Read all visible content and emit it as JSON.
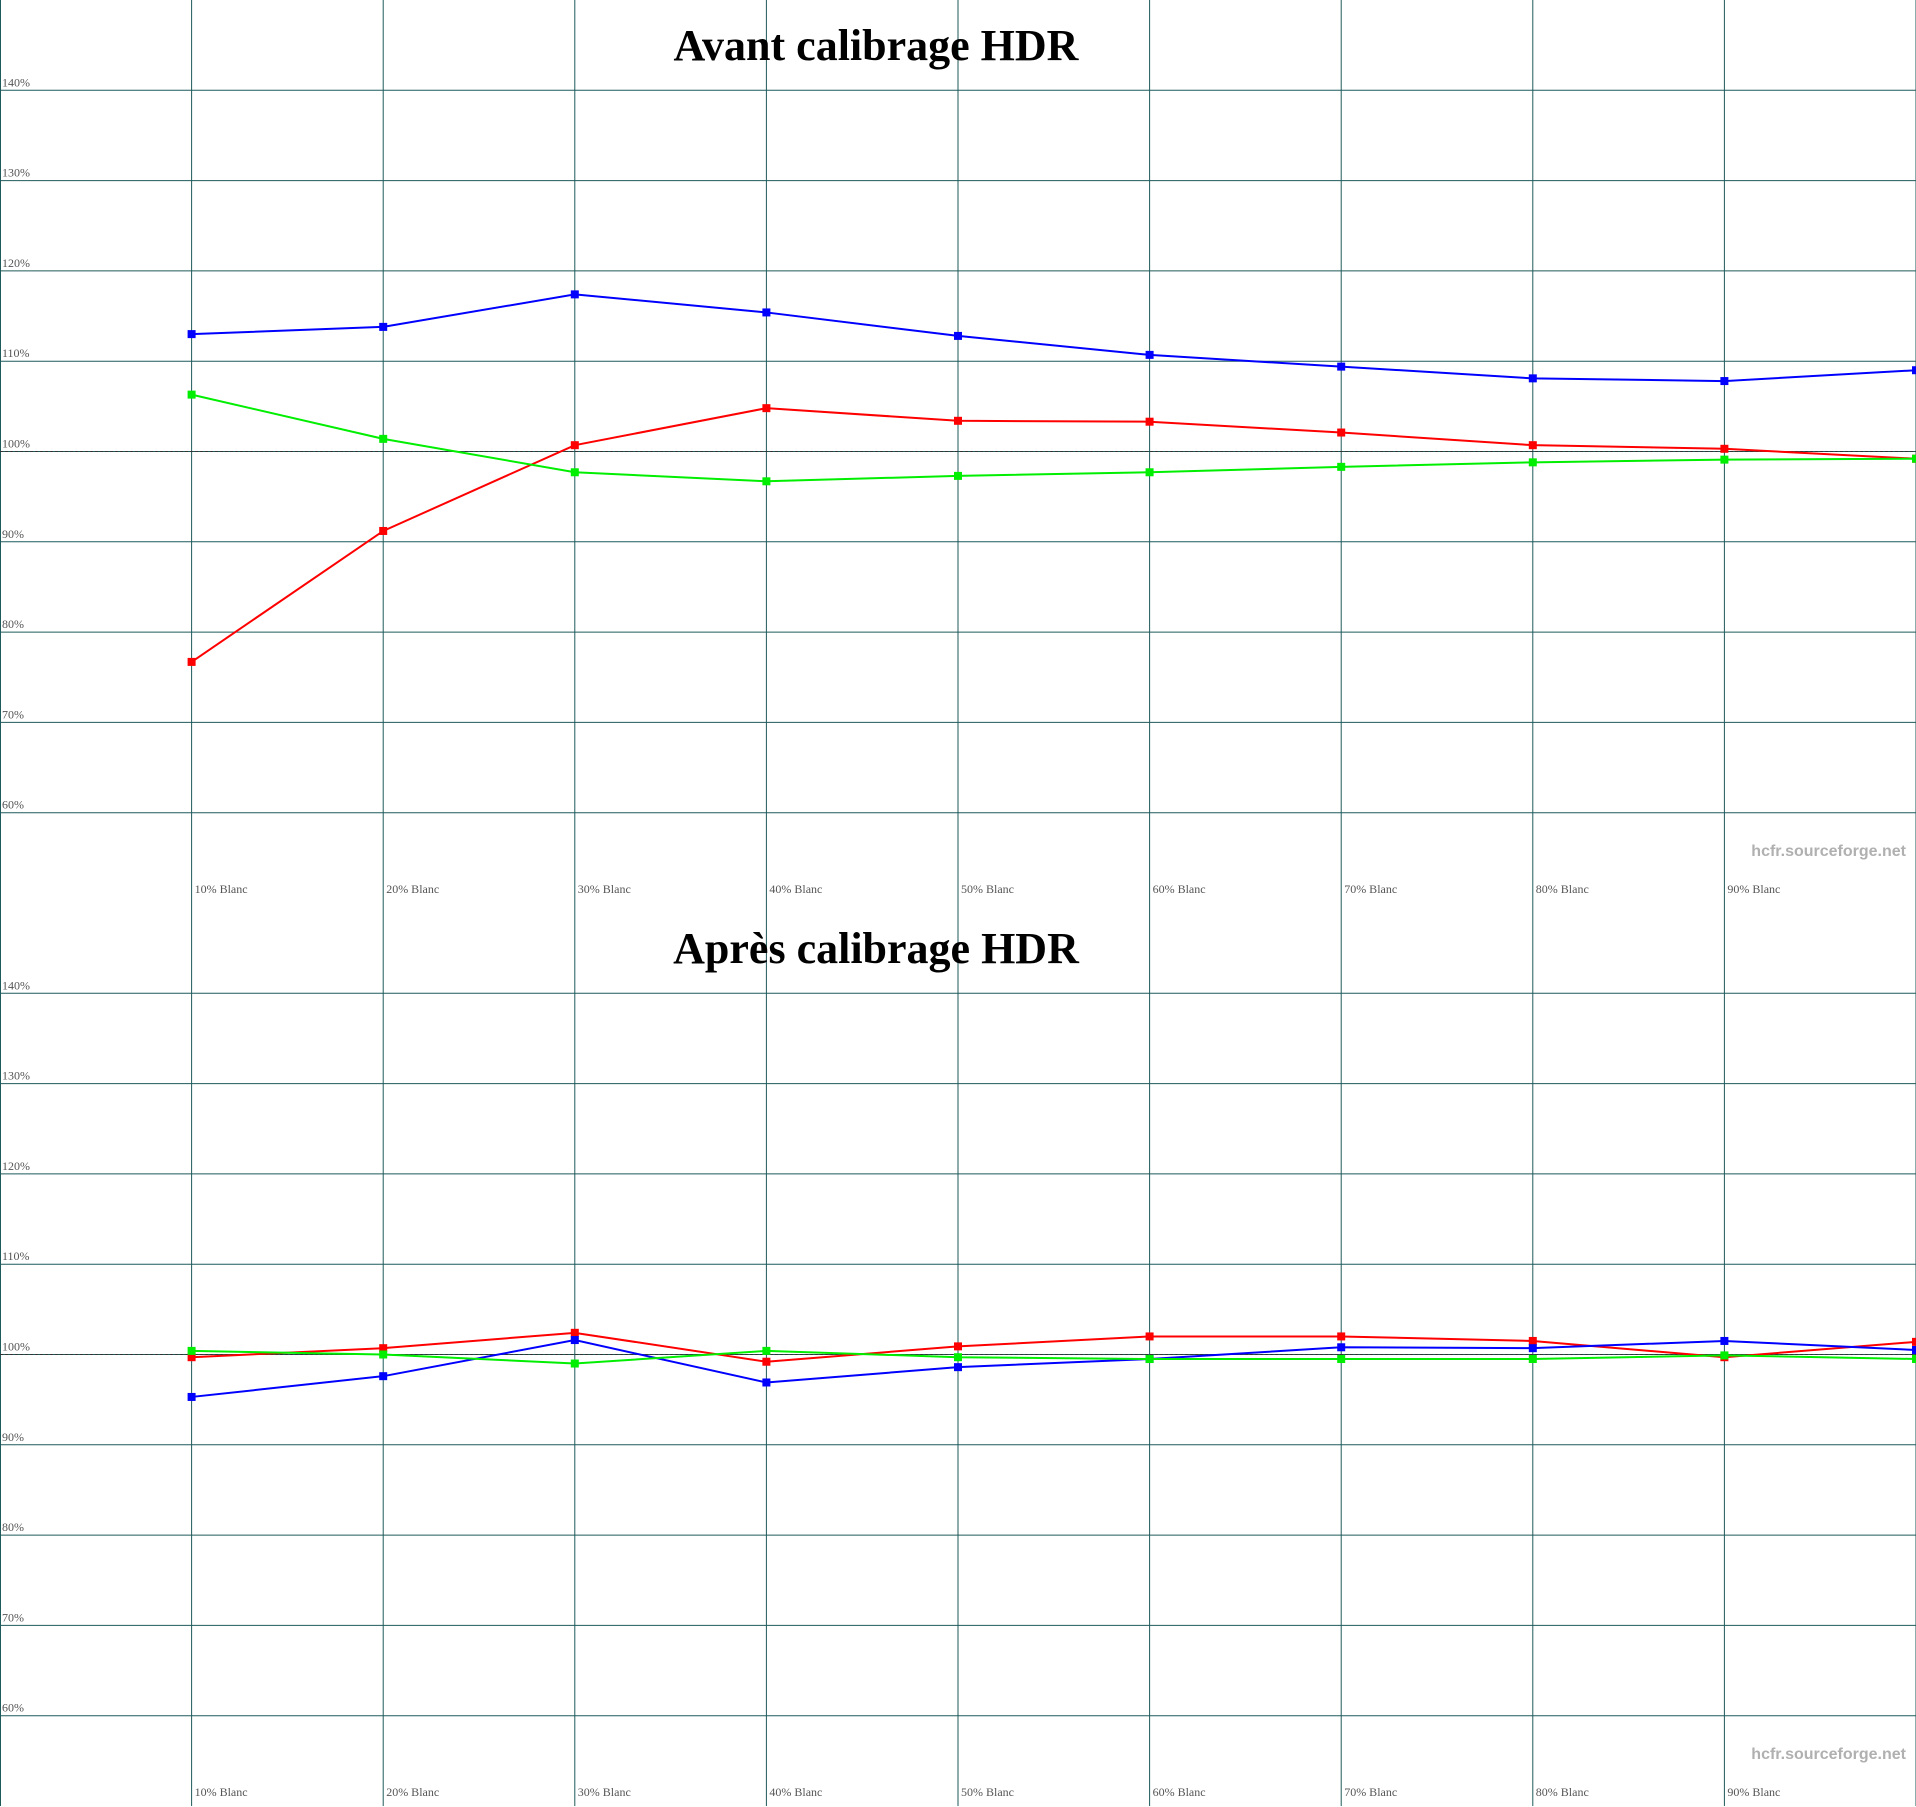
{
  "chart_data": [
    {
      "type": "line",
      "title": "Avant calibrage HDR",
      "watermark": "hcfr.sourceforge.net",
      "categories": [
        "10% Blanc",
        "20% Blanc",
        "30% Blanc",
        "40% Blanc",
        "50% Blanc",
        "60% Blanc",
        "70% Blanc",
        "80% Blanc",
        "90% Blanc",
        null
      ],
      "ylim": [
        50,
        150
      ],
      "yticks": [
        {
          "value": 60,
          "label": "60%"
        },
        {
          "value": 70,
          "label": "70%"
        },
        {
          "value": 80,
          "label": "80%"
        },
        {
          "value": 90,
          "label": "90%"
        },
        {
          "value": 100,
          "label": "100%"
        },
        {
          "value": 110,
          "label": "110%"
        },
        {
          "value": 120,
          "label": "120%"
        },
        {
          "value": 130,
          "label": "130%"
        },
        {
          "value": 140,
          "label": "140%"
        }
      ],
      "grid": true,
      "grid_color": "#1f5a5a",
      "reference": 100,
      "series": [
        {
          "color": "#0000ff",
          "values": [
            113.0,
            113.8,
            117.4,
            115.4,
            112.8,
            110.7,
            109.4,
            108.1,
            107.8,
            109.0
          ]
        },
        {
          "color": "#ff0000",
          "values": [
            76.7,
            91.2,
            100.7,
            104.8,
            103.4,
            103.3,
            102.1,
            100.7,
            100.3,
            99.2
          ]
        },
        {
          "color": "#00ee00",
          "values": [
            106.3,
            101.4,
            97.7,
            96.7,
            97.3,
            97.7,
            98.3,
            98.8,
            99.1,
            99.2
          ]
        }
      ]
    },
    {
      "type": "line",
      "title": "Après calibrage HDR",
      "watermark": "hcfr.sourceforge.net",
      "categories": [
        "10% Blanc",
        "20% Blanc",
        "30% Blanc",
        "40% Blanc",
        "50% Blanc",
        "60% Blanc",
        "70% Blanc",
        "80% Blanc",
        "90% Blanc",
        null
      ],
      "ylim": [
        50,
        150
      ],
      "yticks": [
        {
          "value": 60,
          "label": "60%"
        },
        {
          "value": 70,
          "label": "70%"
        },
        {
          "value": 80,
          "label": "80%"
        },
        {
          "value": 90,
          "label": "90%"
        },
        {
          "value": 100,
          "label": "100%"
        },
        {
          "value": 110,
          "label": "110%"
        },
        {
          "value": 120,
          "label": "120%"
        },
        {
          "value": 130,
          "label": "130%"
        },
        {
          "value": 140,
          "label": "140%"
        }
      ],
      "grid": true,
      "grid_color": "#1f5a5a",
      "reference": 100,
      "series": [
        {
          "color": "#ff0000",
          "values": [
            99.7,
            100.7,
            102.4,
            99.2,
            100.9,
            102.0,
            102.0,
            101.5,
            99.7,
            101.4
          ]
        },
        {
          "color": "#0000ff",
          "values": [
            95.3,
            97.6,
            101.6,
            96.9,
            98.6,
            99.5,
            100.8,
            100.7,
            101.5,
            100.5
          ]
        },
        {
          "color": "#00ee00",
          "values": [
            100.4,
            100.0,
            99.0,
            100.4,
            99.7,
            99.5,
            99.5,
            99.5,
            99.9,
            99.5
          ]
        }
      ]
    }
  ]
}
